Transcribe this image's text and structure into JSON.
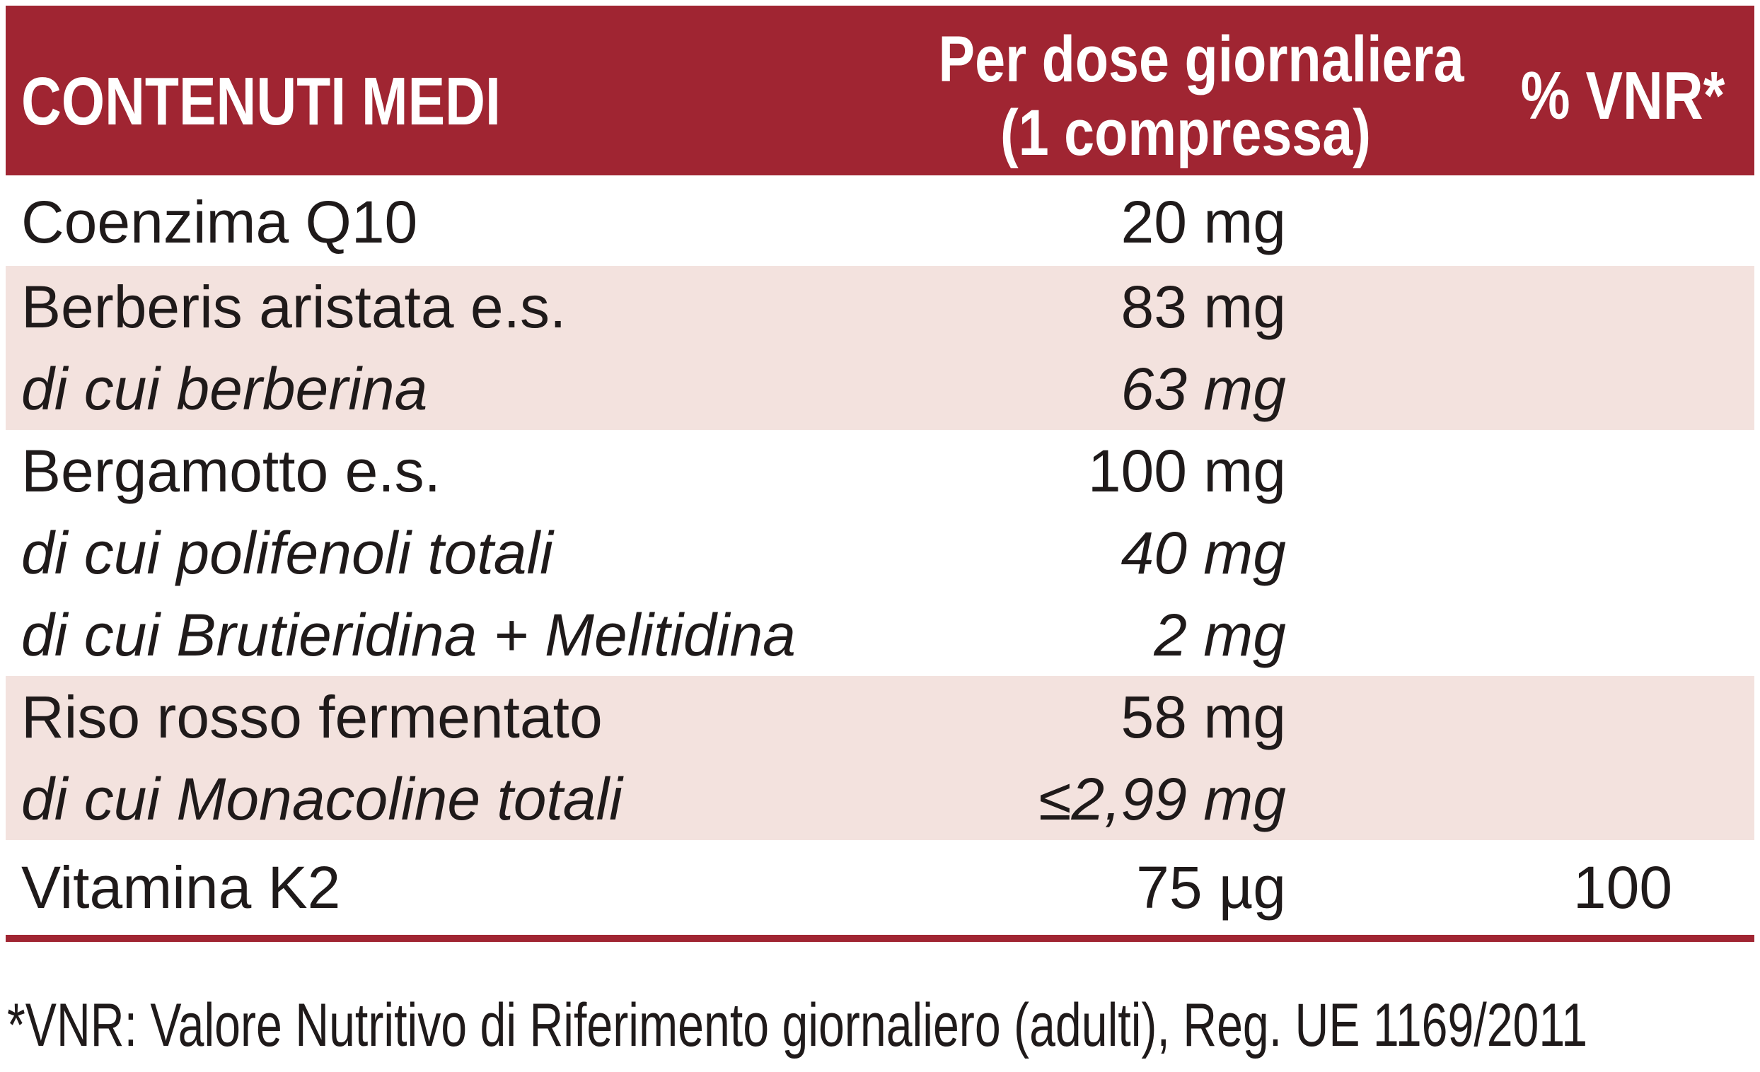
{
  "header": {
    "col1": "CONTENUTI MEDI",
    "col2_line1": "Per dose giornaliera",
    "col2_line2": "(1 compressa)",
    "col3": "% VNR*"
  },
  "groups": [
    {
      "shaded": false,
      "lines": [
        {
          "name": "Coenzima Q10",
          "amount": "20 mg",
          "vnr": "",
          "italic": false
        }
      ]
    },
    {
      "shaded": true,
      "lines": [
        {
          "name": "Berberis aristata e.s.",
          "amount": "83 mg",
          "vnr": "",
          "italic": false
        },
        {
          "name": "di cui berberina",
          "amount": "63 mg",
          "vnr": "",
          "italic": true
        }
      ]
    },
    {
      "shaded": false,
      "lines": [
        {
          "name": "Bergamotto e.s.",
          "amount": "100 mg",
          "vnr": "",
          "italic": false
        },
        {
          "name": "di cui polifenoli totali",
          "amount": "40 mg",
          "vnr": "",
          "italic": true
        },
        {
          "name": "di cui Brutieridina + Melitidina",
          "amount": "2 mg",
          "vnr": "",
          "italic": true
        }
      ]
    },
    {
      "shaded": true,
      "lines": [
        {
          "name": "Riso rosso fermentato",
          "amount": "58 mg",
          "vnr": "",
          "italic": false
        },
        {
          "name": "di cui Monacoline totali",
          "amount": "≤2,99 mg",
          "vnr": "",
          "italic": true
        }
      ]
    },
    {
      "shaded": false,
      "lines": [
        {
          "name": "Vitamina K2",
          "amount": "75 µg",
          "vnr": "100",
          "italic": false
        }
      ]
    }
  ],
  "footnote": "*VNR: Valore Nutritivo di Riferimento giornaliero (adulti), Reg. UE 1169/2011",
  "colors": {
    "header_bg": "#a02532",
    "shaded_row_bg": "#f3e2de",
    "text": "#1f1a1a"
  }
}
